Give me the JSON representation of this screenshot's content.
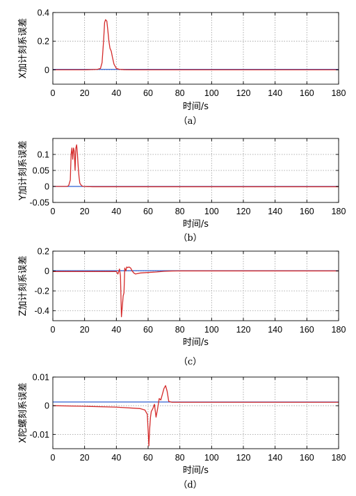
{
  "chart_data": [
    {
      "type": "line",
      "ylabel": "X加计刻系误差",
      "xlabel": "时间/s",
      "caption": "（a）",
      "xlim": [
        0,
        180
      ],
      "ylim": [
        -0.1,
        0.4
      ],
      "xticks": [
        0,
        20,
        40,
        60,
        80,
        100,
        120,
        140,
        160,
        180
      ],
      "xticklabels": [
        "0",
        "20",
        "40",
        "60",
        "80",
        "100",
        "120",
        "140",
        "160",
        "180"
      ],
      "yticks": [
        0,
        0.2,
        0.4
      ],
      "yticklabels": [
        "0",
        "0.2",
        "0.4"
      ],
      "grid": true,
      "series": [
        {
          "color": "#2f5fd0",
          "x": [
            0,
            180
          ],
          "y": [
            0.003,
            0.003
          ]
        },
        {
          "color": "#d42a2a",
          "x": [
            0,
            20,
            28,
            30,
            31,
            32,
            32.6,
            33.2,
            34,
            34.6,
            35.3,
            36,
            36.8,
            37.5,
            38.5,
            40,
            42,
            45,
            50,
            180
          ],
          "y": [
            0.0,
            0.0,
            0.003,
            0.01,
            0.05,
            0.21,
            0.33,
            0.35,
            0.34,
            0.28,
            0.2,
            0.15,
            0.13,
            0.09,
            0.04,
            0.01,
            0.003,
            0.001,
            0.0,
            0.0
          ]
        }
      ]
    },
    {
      "type": "line",
      "ylabel": "Y加计刻系误差",
      "xlabel": "时间/s",
      "caption": "（b）",
      "xlim": [
        0,
        180
      ],
      "ylim": [
        -0.05,
        0.15
      ],
      "xticks": [
        0,
        20,
        40,
        60,
        80,
        100,
        120,
        140,
        160,
        180
      ],
      "xticklabels": [
        "0",
        "20",
        "40",
        "60",
        "80",
        "100",
        "120",
        "140",
        "160",
        "180"
      ],
      "yticks": [
        -0.05,
        0,
        0.05,
        0.1
      ],
      "yticklabels": [
        "-0.05",
        "0",
        "0.05",
        "0.1"
      ],
      "grid": true,
      "series": [
        {
          "color": "#2f5fd0",
          "x": [
            0,
            180
          ],
          "y": [
            0.0,
            0.0
          ]
        },
        {
          "color": "#d42a2a",
          "x": [
            0,
            9,
            10,
            11,
            11.5,
            12,
            12.5,
            13,
            13.5,
            14,
            14.5,
            15,
            15.5,
            16,
            16.5,
            17,
            18,
            19,
            25,
            180
          ],
          "y": [
            0.0,
            0.0,
            0.003,
            0.02,
            0.1,
            0.12,
            0.085,
            0.12,
            0.11,
            0.05,
            0.12,
            0.13,
            0.1,
            0.06,
            0.03,
            0.01,
            0.003,
            0.0,
            -0.001,
            -0.001
          ]
        }
      ]
    },
    {
      "type": "line",
      "ylabel": "Z加计刻系误差",
      "xlabel": "时间/s",
      "caption": "（c）",
      "xlim": [
        0,
        180
      ],
      "ylim": [
        -0.5,
        0.2
      ],
      "xticks": [
        0,
        20,
        40,
        60,
        80,
        100,
        120,
        140,
        160,
        180
      ],
      "xticklabels": [
        "0",
        "20",
        "40",
        "60",
        "80",
        "100",
        "120",
        "140",
        "160",
        "180"
      ],
      "yticks": [
        -0.4,
        -0.2,
        0,
        0.2
      ],
      "yticklabels": [
        "-0.4",
        "-0.2",
        "0",
        "0.2"
      ],
      "grid": true,
      "series": [
        {
          "color": "#2f5fd0",
          "x": [
            0,
            180
          ],
          "y": [
            0.003,
            0.003
          ]
        },
        {
          "color": "#d42a2a",
          "x": [
            0,
            38,
            40,
            41,
            42,
            42.6,
            43.2,
            43.8,
            44.3,
            44.8,
            45.3,
            46,
            46.5,
            47,
            48,
            49,
            50,
            51,
            52,
            55,
            60,
            65,
            70,
            75,
            80,
            180
          ],
          "y": [
            -0.005,
            -0.005,
            -0.005,
            -0.03,
            0.02,
            -0.05,
            -0.46,
            -0.35,
            -0.25,
            -0.22,
            0.03,
            0.0,
            0.04,
            0.035,
            0.04,
            0.03,
            0.0,
            -0.02,
            -0.03,
            -0.02,
            -0.015,
            -0.01,
            -0.003,
            0.0,
            0.001,
            0.001
          ]
        }
      ]
    },
    {
      "type": "line",
      "ylabel": "X陀螺刻系误差",
      "xlabel": "时间/s",
      "caption": "（d）",
      "xlim": [
        0,
        180
      ],
      "ylim": [
        -0.015,
        0.01
      ],
      "xticks": [
        0,
        20,
        40,
        60,
        80,
        100,
        120,
        140,
        160,
        180
      ],
      "xticklabels": [
        "0",
        "20",
        "40",
        "60",
        "80",
        "100",
        "120",
        "140",
        "160",
        "180"
      ],
      "yticks": [
        -0.01,
        0,
        0.01
      ],
      "yticklabels": [
        "-0.01",
        "0",
        "0.01"
      ],
      "grid": true,
      "series": [
        {
          "color": "#2f5fd0",
          "x": [
            0,
            180
          ],
          "y": [
            0.0013,
            0.0013
          ]
        },
        {
          "color": "#d42a2a",
          "x": [
            0,
            20,
            40,
            55,
            58,
            59.5,
            60.5,
            61,
            61.5,
            62,
            63,
            64,
            65,
            66,
            67,
            68,
            69,
            70,
            71,
            72,
            73,
            75,
            80,
            100,
            180
          ],
          "y": [
            0.0,
            -0.0002,
            -0.0005,
            -0.001,
            -0.0015,
            -0.003,
            -0.014,
            -0.008,
            -0.004,
            -0.002,
            -0.001,
            0.0005,
            -0.004,
            -0.001,
            0.0025,
            0.002,
            0.004,
            0.006,
            0.007,
            0.005,
            0.0015,
            0.0012,
            0.0012,
            0.0012,
            0.0012
          ]
        }
      ]
    }
  ]
}
